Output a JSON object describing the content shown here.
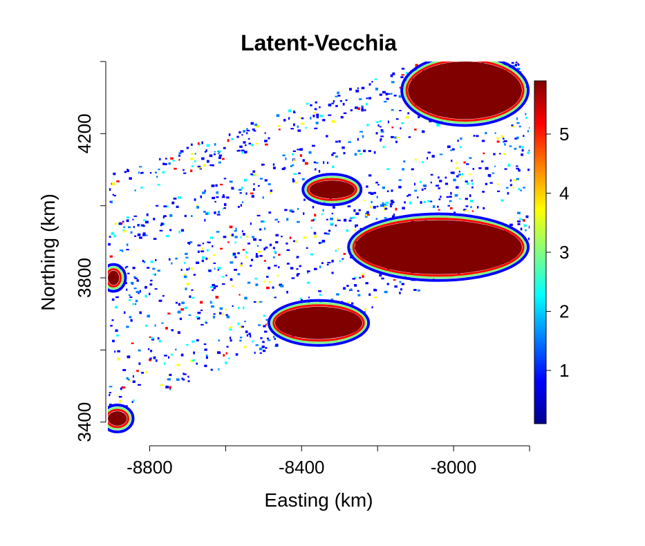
{
  "chart_data": {
    "type": "heatmap",
    "title": "Latent-Vecchia",
    "xlabel": "Easting (km)",
    "ylabel": "Northing (km)",
    "xlim": [
      -8910,
      -7800
    ],
    "ylim": [
      3340,
      4400
    ],
    "x_ticks": [
      -8800,
      -8600,
      -8400,
      -8200,
      -8000,
      -7800
    ],
    "x_tick_labels": [
      "-8800",
      "",
      "-8400",
      "",
      "-8000",
      ""
    ],
    "y_ticks": [
      3400,
      3600,
      3800,
      4000,
      4200,
      4400
    ],
    "y_tick_labels": [
      "3400",
      "",
      "3800",
      "",
      "4200",
      ""
    ],
    "colorbar": {
      "range": [
        0.1,
        5.9
      ],
      "ticks": [
        1,
        2,
        3,
        4,
        5
      ],
      "tick_labels": [
        "1",
        "2",
        "3",
        "4",
        "5"
      ],
      "colormap": [
        "#00008f",
        "#0000ff",
        "#0080ff",
        "#00ffff",
        "#80ff80",
        "#ffff00",
        "#ff8000",
        "#ff0000",
        "#800000"
      ]
    },
    "background_color": "#ffffff",
    "saturated_color": "#800000",
    "high_value_regions": [
      {
        "x": [
          -8120,
          -7820
        ],
        "y": [
          4240,
          4400
        ],
        "value": 5.9
      },
      {
        "x": [
          -8260,
          -7820
        ],
        "y": [
          3810,
          3960
        ],
        "value": 5.9
      },
      {
        "x": [
          -8470,
          -8240
        ],
        "y": [
          3630,
          3720
        ],
        "value": 5.9
      },
      {
        "x": [
          -8380,
          -8260
        ],
        "y": [
          4020,
          4070
        ],
        "value": 5.9
      },
      {
        "x": [
          -8910,
          -8880
        ],
        "y": [
          3780,
          3820
        ],
        "value": 5.9
      },
      {
        "x": [
          -8910,
          -8860
        ],
        "y": [
          3390,
          3430
        ],
        "value": 5.9
      }
    ]
  }
}
